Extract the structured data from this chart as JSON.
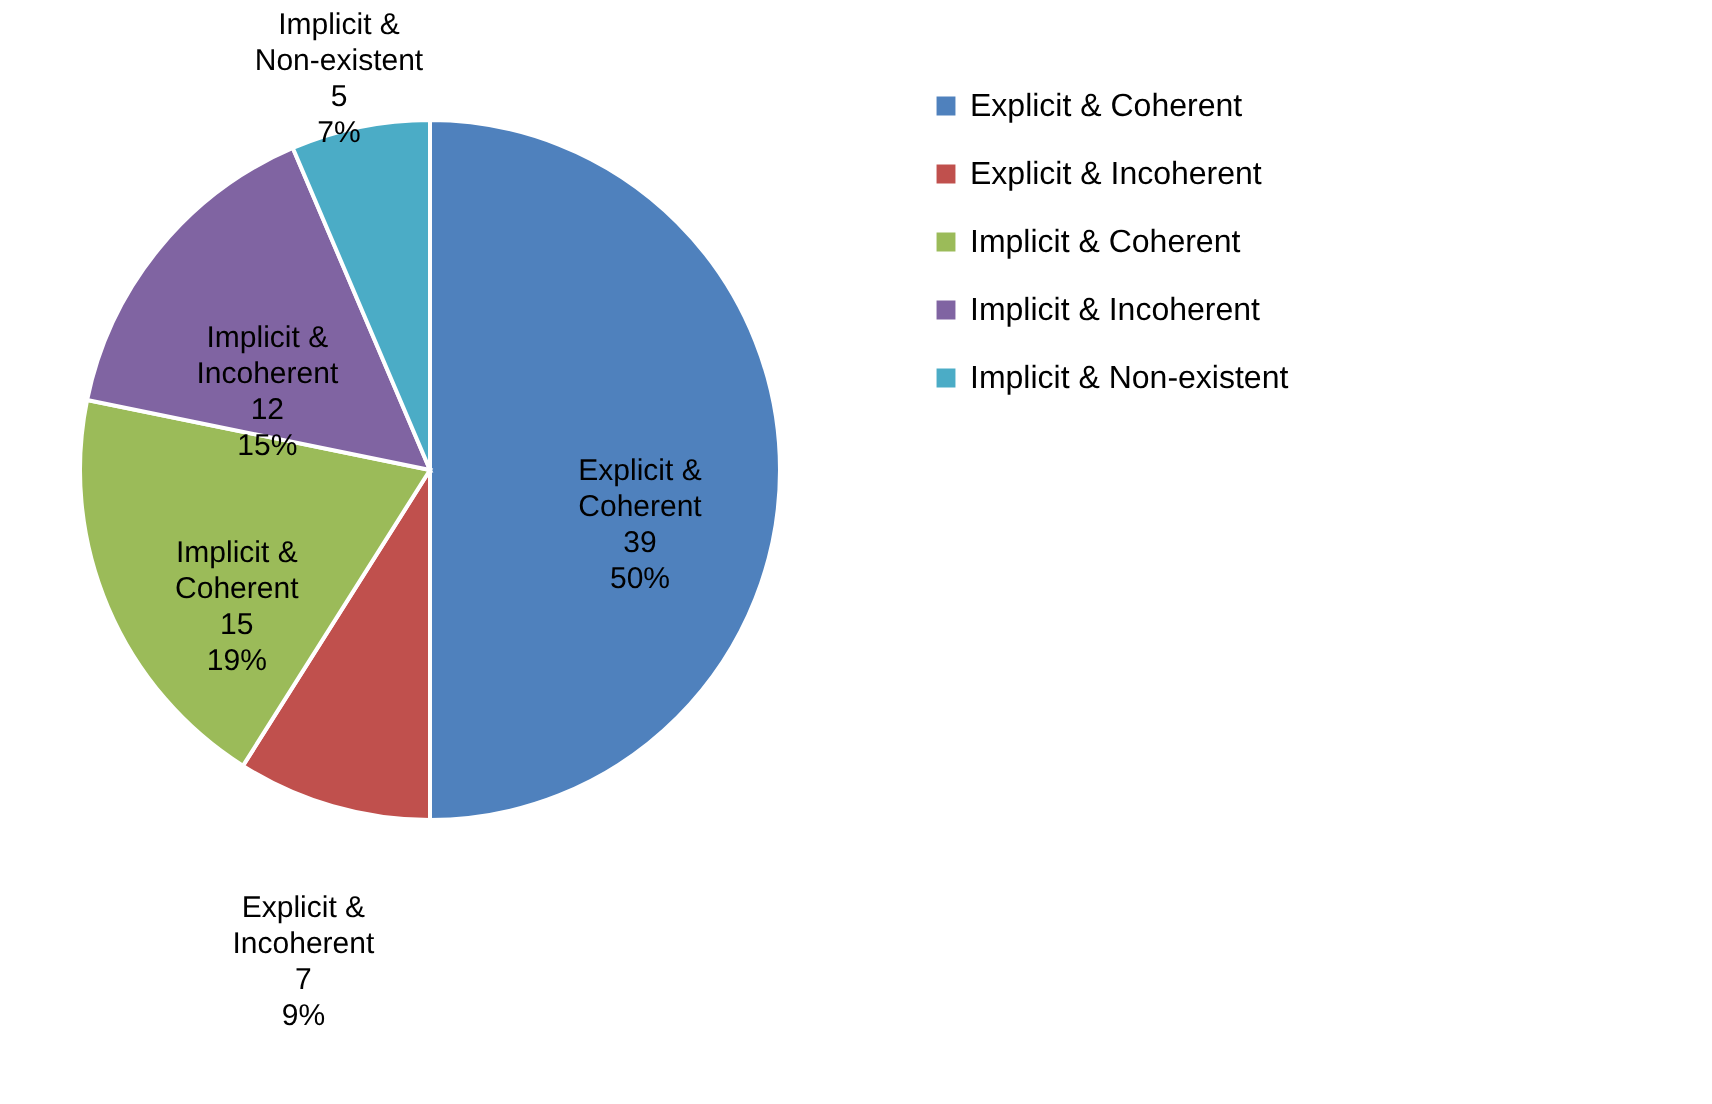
{
  "chart_data": {
    "type": "pie",
    "categories": [
      "Explicit & Coherent",
      "Explicit & Incoherent",
      "Implicit & Coherent",
      "Implicit & Incoherent",
      "Implicit & Non-existent"
    ],
    "values": [
      39,
      7,
      15,
      12,
      5
    ],
    "colors": [
      "#4f81bd",
      "#c0504d",
      "#9bbb59",
      "#8064a2",
      "#4bacc6"
    ],
    "value_labels": [
      "39\n50%",
      "7\n9%",
      "15\n19%",
      "12\n15%",
      "5\n7%"
    ],
    "legend": "right"
  }
}
